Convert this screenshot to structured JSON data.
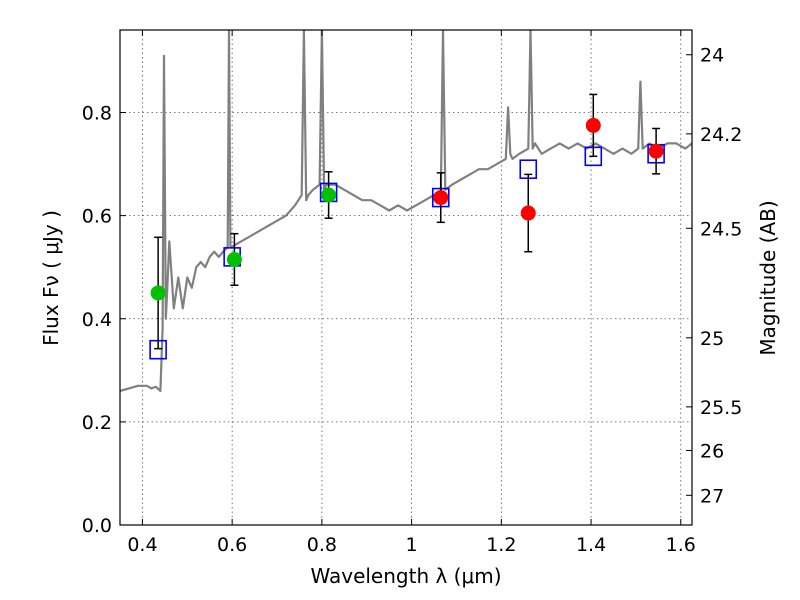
{
  "chart_data": {
    "type": "scatter",
    "title": "",
    "xlabel": "Wavelength  λ (μm)",
    "ylabel": "Flux  Fν  ( μJy )",
    "ylabel_right": "Magnitude (AB)",
    "xlim": [
      0.35,
      1.625
    ],
    "ylim": [
      0.0,
      0.96
    ],
    "x_ticks": [
      0.4,
      0.6,
      0.8,
      1.0,
      1.2,
      1.4,
      1.6
    ],
    "x_tick_labels": [
      "0.4",
      "0.6",
      "0.8",
      "1",
      "1.2",
      "1.4",
      "1.6"
    ],
    "y_ticks": [
      0.0,
      0.2,
      0.4,
      0.6,
      0.8
    ],
    "y_tick_labels": [
      "0.0",
      "0.2",
      "0.4",
      "0.6",
      "0.8"
    ],
    "right_ticks_mag": [
      24,
      24.2,
      24.5,
      25,
      25.5,
      26,
      27
    ],
    "right_tick_labels": [
      "24",
      "24.2",
      "24.5",
      "25",
      "25.5",
      "26",
      "27"
    ],
    "grid": true,
    "series": [
      {
        "style": "line",
        "color": "#808080",
        "x": [
          0.35,
          0.37,
          0.39,
          0.41,
          0.42,
          0.43,
          0.44,
          0.445,
          0.448,
          0.452,
          0.455,
          0.46,
          0.47,
          0.48,
          0.49,
          0.5,
          0.51,
          0.52,
          0.53,
          0.54,
          0.55,
          0.56,
          0.57,
          0.58,
          0.59,
          0.593,
          0.596,
          0.6,
          0.62,
          0.64,
          0.66,
          0.68,
          0.7,
          0.72,
          0.74,
          0.755,
          0.76,
          0.765,
          0.77,
          0.78,
          0.795,
          0.8,
          0.805,
          0.81,
          0.83,
          0.85,
          0.87,
          0.89,
          0.91,
          0.93,
          0.95,
          0.97,
          0.99,
          1.01,
          1.03,
          1.05,
          1.065,
          1.07,
          1.075,
          1.09,
          1.11,
          1.13,
          1.15,
          1.17,
          1.19,
          1.21,
          1.215,
          1.22,
          1.225,
          1.24,
          1.26,
          1.265,
          1.27,
          1.275,
          1.29,
          1.31,
          1.33,
          1.35,
          1.37,
          1.39,
          1.41,
          1.43,
          1.45,
          1.47,
          1.49,
          1.505,
          1.51,
          1.515,
          1.53,
          1.55,
          1.57,
          1.59,
          1.61,
          1.625
        ],
        "y": [
          0.26,
          0.265,
          0.27,
          0.27,
          0.265,
          0.268,
          0.26,
          0.38,
          0.91,
          0.4,
          0.45,
          0.55,
          0.42,
          0.48,
          0.42,
          0.48,
          0.46,
          0.5,
          0.51,
          0.5,
          0.52,
          0.53,
          0.52,
          0.53,
          0.54,
          0.96,
          0.54,
          0.54,
          0.55,
          0.56,
          0.57,
          0.58,
          0.59,
          0.6,
          0.62,
          0.64,
          0.96,
          0.63,
          0.64,
          0.65,
          0.66,
          0.96,
          0.65,
          0.66,
          0.66,
          0.65,
          0.64,
          0.63,
          0.63,
          0.62,
          0.61,
          0.62,
          0.61,
          0.62,
          0.63,
          0.64,
          0.64,
          0.96,
          0.65,
          0.66,
          0.67,
          0.68,
          0.69,
          0.69,
          0.7,
          0.71,
          0.81,
          0.72,
          0.71,
          0.72,
          0.73,
          0.96,
          0.73,
          0.74,
          0.72,
          0.73,
          0.74,
          0.73,
          0.74,
          0.73,
          0.74,
          0.73,
          0.72,
          0.73,
          0.72,
          0.73,
          0.86,
          0.73,
          0.74,
          0.73,
          0.74,
          0.74,
          0.73,
          0.74
        ]
      },
      {
        "style": "open-square",
        "color": "#0000ff",
        "x": [
          0.435,
          0.6,
          0.815,
          1.065,
          1.26,
          1.405,
          1.545
        ],
        "y": [
          0.34,
          0.52,
          0.645,
          0.635,
          0.69,
          0.715,
          0.72
        ]
      },
      {
        "style": "filled-circle",
        "color": "#00c000",
        "x": [
          0.435,
          0.605,
          0.815
        ],
        "y": [
          0.45,
          0.515,
          0.64
        ],
        "yerr": [
          0.108,
          0.05,
          0.045
        ]
      },
      {
        "style": "filled-circle",
        "color": "#ff0000",
        "x": [
          1.065,
          1.26,
          1.405,
          1.545
        ],
        "y": [
          0.635,
          0.605,
          0.775,
          0.725
        ],
        "yerr": [
          0.048,
          0.075,
          0.06,
          0.044
        ]
      }
    ]
  }
}
